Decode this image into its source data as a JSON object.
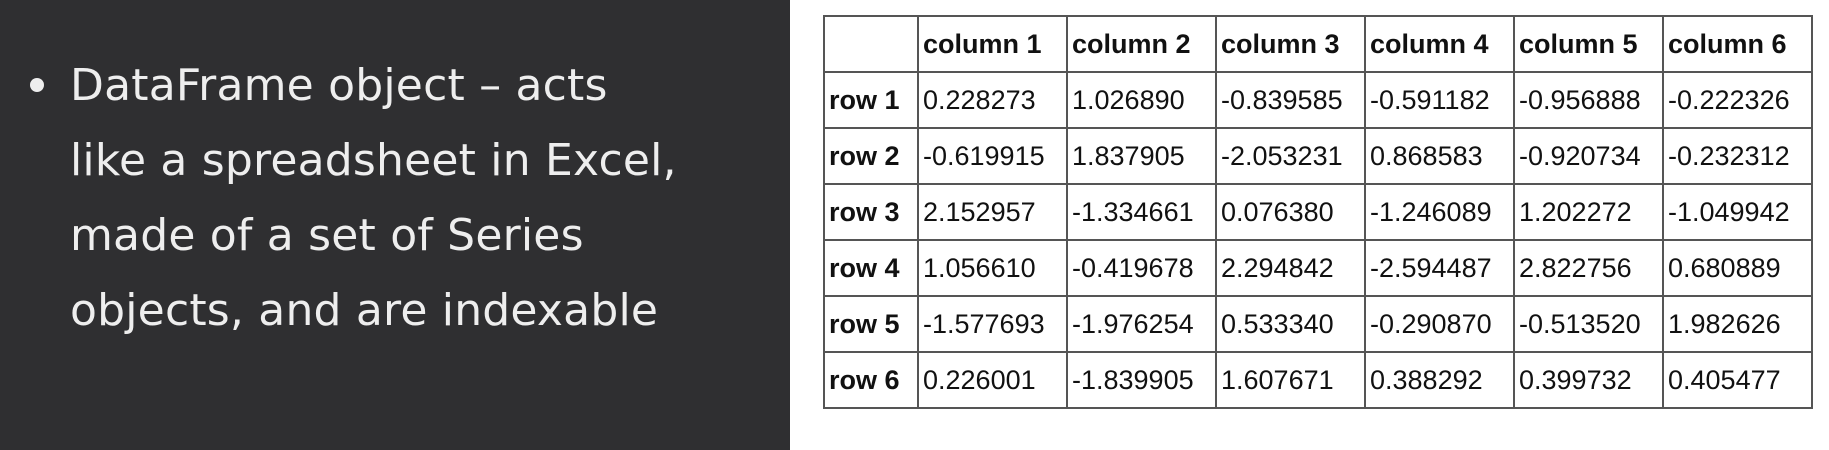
{
  "slide": {
    "bullets": [
      {
        "lines": [
          "DataFrame object – acts",
          "like a spreadsheet in Excel,",
          "made of a set of Series",
          "objects, and are indexable"
        ]
      }
    ]
  },
  "table": {
    "columns": [
      "column 1",
      "column 2",
      "column 3",
      "column 4",
      "column 5",
      "column 6"
    ],
    "rows": [
      {
        "label": "row 1",
        "values": [
          "0.228273",
          "1.026890",
          "-0.839585",
          "-0.591182",
          "-0.956888",
          "-0.222326"
        ]
      },
      {
        "label": "row 2",
        "values": [
          "-0.619915",
          "1.837905",
          "-2.053231",
          "0.868583",
          "-0.920734",
          "-0.232312"
        ]
      },
      {
        "label": "row 3",
        "values": [
          "2.152957",
          "-1.334661",
          "0.076380",
          "-1.246089",
          "1.202272",
          "-1.049942"
        ]
      },
      {
        "label": "row 4",
        "values": [
          "1.056610",
          "-0.419678",
          "2.294842",
          "-2.594487",
          "2.822756",
          "0.680889"
        ]
      },
      {
        "label": "row 5",
        "values": [
          "-1.577693",
          "-1.976254",
          "0.533340",
          "-0.290870",
          "-0.513520",
          "1.982626"
        ]
      },
      {
        "label": "row 6",
        "values": [
          "0.226001",
          "-1.839905",
          "1.607671",
          "0.388292",
          "0.399732",
          "0.405477"
        ]
      }
    ]
  },
  "colors": {
    "left_background": "#2f2f31",
    "left_text": "#eeeeee",
    "table_border": "#555555",
    "table_text": "#111111"
  }
}
